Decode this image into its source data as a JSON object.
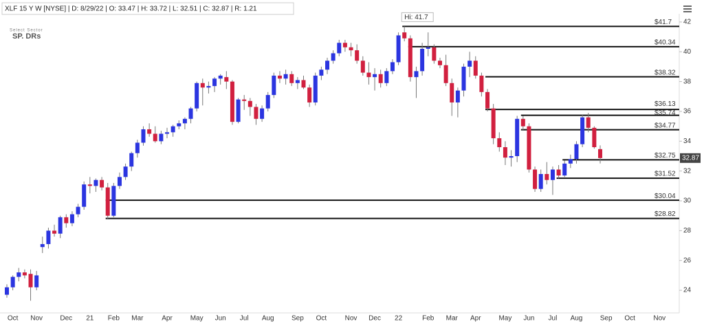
{
  "chart_data": {
    "type": "candlestick",
    "header": "XLF 15 Y W [NYSE] | D: 8/29/22 | O: 33.47 | H: 33.72 | L: 32.51 | C: 32.87 | R: 1.21",
    "logo_top": "Select Sector",
    "logo_bottom": "SP. DRs",
    "high_note": {
      "value": 41.7,
      "label": "Hi: 41.7"
    },
    "last_price": 32.87,
    "up_color": "#2b35e0",
    "down_color": "#d1203f",
    "ylim": [
      22.25,
      42.55
    ],
    "yticks": [
      24,
      26,
      28,
      30,
      32,
      34,
      36,
      38,
      40,
      42
    ],
    "levels": [
      {
        "value": 41.7,
        "label": "$41.7"
      },
      {
        "value": 40.34,
        "label": "$40.34"
      },
      {
        "value": 38.32,
        "label": "$38.32"
      },
      {
        "value": 36.13,
        "label": "$36.13"
      },
      {
        "value": 35.74,
        "label": "$35.74"
      },
      {
        "value": 34.77,
        "label": "$34.77"
      },
      {
        "value": 32.75,
        "label": "$32.75"
      },
      {
        "value": 31.52,
        "label": "$31.52"
      },
      {
        "value": 30.04,
        "label": "$30.04"
      },
      {
        "value": 28.82,
        "label": "$28.82"
      }
    ],
    "categories": [
      null,
      "Oct",
      null,
      null,
      null,
      "Nov",
      null,
      null,
      null,
      null,
      "Dec",
      null,
      null,
      null,
      "21",
      null,
      null,
      null,
      "Feb",
      null,
      null,
      null,
      "Mar",
      null,
      null,
      null,
      null,
      "Apr",
      null,
      null,
      null,
      null,
      "May",
      null,
      null,
      null,
      "Jun",
      null,
      null,
      null,
      "Jul",
      null,
      null,
      null,
      "Aug",
      null,
      null,
      null,
      null,
      "Sep",
      null,
      null,
      null,
      "Oct",
      null,
      null,
      null,
      null,
      "Nov",
      null,
      null,
      null,
      "Dec",
      null,
      null,
      null,
      "22",
      null,
      null,
      null,
      null,
      "Feb",
      null,
      null,
      null,
      "Mar",
      null,
      null,
      null,
      "Apr",
      null,
      null,
      null,
      null,
      "May",
      null,
      null,
      null,
      "Jun",
      null,
      null,
      null,
      "Jul",
      null,
      null,
      null,
      "Aug",
      null,
      null,
      null,
      null,
      "Sep",
      null,
      null,
      null,
      "Oct",
      null,
      null,
      null,
      null,
      "Nov"
    ],
    "open": [
      23.7,
      24.2,
      24.9,
      25.2,
      25.1,
      24.2,
      26.9,
      27.1,
      28.0,
      27.8,
      28.9,
      28.5,
      29.1,
      29.6,
      31.1,
      31.0,
      31.4,
      30.9,
      29.0,
      31.0,
      31.6,
      32.3,
      33.2,
      33.9,
      34.8,
      34.5,
      34.0,
      34.5,
      34.6,
      35.0,
      35.2,
      35.5,
      36.2,
      37.9,
      37.6,
      37.7,
      38.2,
      38.3,
      38.0,
      35.3,
      36.8,
      36.7,
      36.3,
      35.5,
      36.2,
      37.1,
      38.4,
      38.2,
      38.5,
      37.9,
      38.1,
      37.6,
      36.6,
      38.4,
      38.8,
      39.4,
      39.9,
      40.6,
      40.3,
      40.1,
      39.4,
      38.6,
      38.3,
      38.5,
      37.9,
      38.7,
      39.3,
      41.3,
      40.9,
      38.3,
      38.7,
      40.2,
      40.3,
      39.4,
      39.1,
      37.9,
      36.6,
      37.4,
      39.0,
      39.4,
      38.4,
      37.3,
      36.2,
      34.2,
      33.6,
      32.9,
      33.0,
      35.5,
      35.0,
      32.1,
      30.8,
      31.8,
      31.4,
      32.1,
      31.7,
      32.5,
      32.8,
      33.8,
      35.6,
      34.9,
      33.47,
      null,
      null,
      null,
      null,
      null,
      null,
      null,
      null,
      null,
      null
    ],
    "high": [
      24.4,
      25.0,
      25.5,
      25.4,
      25.4,
      25.3,
      27.6,
      28.2,
      28.4,
      29.0,
      29.1,
      29.3,
      29.8,
      31.3,
      31.6,
      31.5,
      31.6,
      31.2,
      31.2,
      31.9,
      32.5,
      33.3,
      34.1,
      35.0,
      35.2,
      35.0,
      34.7,
      34.9,
      35.1,
      35.4,
      35.6,
      36.3,
      38.0,
      38.2,
      38.0,
      38.3,
      38.5,
      38.7,
      38.1,
      36.9,
      37.1,
      36.9,
      36.5,
      36.4,
      37.3,
      38.6,
      38.7,
      38.8,
      38.7,
      38.3,
      38.4,
      37.8,
      38.6,
      39.0,
      39.6,
      40.1,
      40.8,
      40.8,
      40.6,
      40.5,
      39.7,
      39.3,
      38.9,
      38.8,
      38.9,
      39.5,
      41.3,
      41.7,
      41.1,
      39.0,
      40.6,
      41.3,
      40.5,
      39.6,
      39.8,
      38.2,
      37.6,
      39.2,
      40.0,
      39.7,
      38.6,
      37.5,
      36.5,
      34.6,
      34.0,
      33.4,
      35.7,
      35.7,
      35.2,
      32.3,
      32.1,
      32.6,
      32.3,
      32.4,
      32.7,
      33.1,
      34.0,
      35.8,
      35.9,
      35.0,
      33.72,
      null,
      null,
      null,
      null,
      null,
      null,
      null,
      null,
      null,
      null
    ],
    "low": [
      23.5,
      24.0,
      24.6,
      24.8,
      23.3,
      24.0,
      26.5,
      26.8,
      27.6,
      27.5,
      28.2,
      28.3,
      28.9,
      29.4,
      30.5,
      30.6,
      30.7,
      28.8,
      28.9,
      30.8,
      31.4,
      32.0,
      32.9,
      33.7,
      34.3,
      33.9,
      33.8,
      34.2,
      34.3,
      34.8,
      34.8,
      35.2,
      36.0,
      36.4,
      37.2,
      37.3,
      37.8,
      37.5,
      35.1,
      35.2,
      36.1,
      35.7,
      35.1,
      35.3,
      36.0,
      36.9,
      37.9,
      37.8,
      37.7,
      37.5,
      37.5,
      36.3,
      36.4,
      38.1,
      38.5,
      39.2,
      39.7,
      40.0,
      39.7,
      39.2,
      38.4,
      37.8,
      37.4,
      37.6,
      37.7,
      38.5,
      39.1,
      40.7,
      38.0,
      36.9,
      38.4,
      39.7,
      39.2,
      38.9,
      37.7,
      35.7,
      35.6,
      37.0,
      38.3,
      38.2,
      37.0,
      36.0,
      33.8,
      33.3,
      32.4,
      32.3,
      32.6,
      34.7,
      31.9,
      30.6,
      30.6,
      31.1,
      30.4,
      31.5,
      31.6,
      32.2,
      32.5,
      33.6,
      34.6,
      33.5,
      32.51,
      null,
      null,
      null,
      null,
      null,
      null,
      null,
      null,
      null,
      null
    ],
    "close": [
      24.2,
      24.9,
      25.2,
      25.0,
      24.2,
      25.0,
      27.1,
      28.0,
      27.8,
      28.9,
      28.5,
      29.1,
      29.6,
      31.1,
      31.0,
      31.4,
      30.9,
      29.0,
      31.0,
      31.6,
      32.3,
      33.2,
      33.9,
      34.8,
      34.5,
      34.0,
      34.5,
      34.6,
      35.0,
      35.2,
      35.5,
      36.2,
      37.9,
      37.6,
      37.7,
      38.2,
      38.4,
      38.0,
      35.3,
      36.8,
      36.7,
      36.3,
      35.5,
      36.2,
      37.1,
      38.4,
      38.2,
      38.5,
      37.9,
      38.1,
      37.6,
      36.6,
      38.4,
      38.8,
      39.4,
      39.9,
      40.6,
      40.3,
      40.1,
      39.4,
      38.6,
      38.3,
      38.5,
      37.9,
      38.7,
      39.3,
      41.1,
      40.9,
      38.3,
      38.7,
      40.2,
      40.3,
      39.4,
      39.1,
      37.9,
      36.6,
      37.4,
      39.0,
      39.4,
      38.4,
      37.3,
      36.2,
      34.2,
      33.6,
      32.9,
      33.0,
      35.5,
      35.0,
      32.1,
      30.8,
      31.8,
      31.4,
      32.1,
      31.7,
      32.5,
      32.8,
      33.8,
      35.6,
      34.9,
      33.6,
      32.87,
      null,
      null,
      null,
      null,
      null,
      null,
      null,
      null,
      null,
      null
    ]
  }
}
